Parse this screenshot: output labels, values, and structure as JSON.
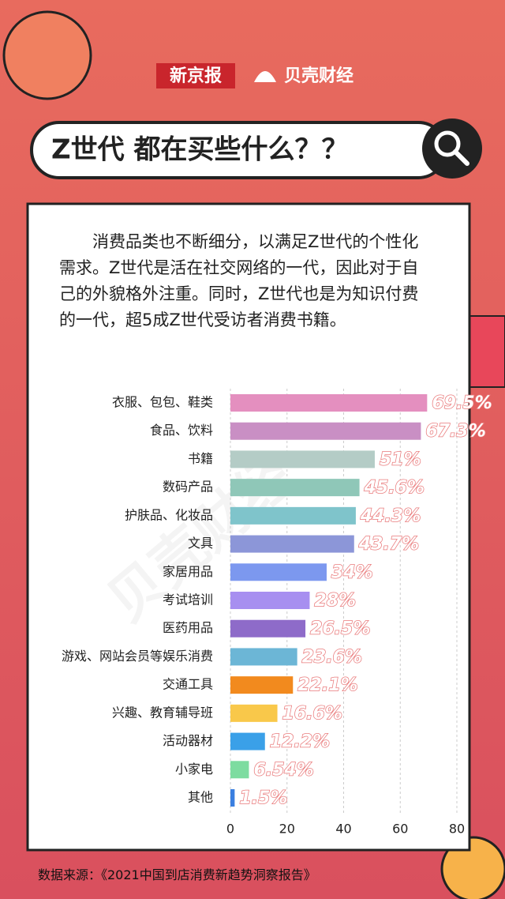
{
  "header": {
    "brands": [
      "新京报",
      "贝壳财经"
    ]
  },
  "chart_data": {
    "type": "bar",
    "orientation": "horizontal",
    "title": "Z世代 都在买些什么？？",
    "subtitle": "消费品类也不断细分，以满足Z世代的个性化需求。Z世代是活在社交网络的一代，因此对于自己的外貌格外注重。同时，Z世代也是为知识付费的一代，超5成Z世代受访者消费书籍。",
    "source": "数据来源：《2021中国到店消费新趋势洞察报告》",
    "categories": [
      "衣服、包包、鞋类",
      "食品、饮料",
      "书籍",
      "数码产品",
      "护肤品、化妆品",
      "文具",
      "家居用品",
      "考试培训",
      "医药用品",
      "游戏、网站会员等娱乐消费",
      "交通工具",
      "兴趣、教育辅导班",
      "活动器材",
      "小家电",
      "其他"
    ],
    "values": [
      69.5,
      67.3,
      51,
      45.6,
      44.3,
      43.7,
      34,
      28,
      26.5,
      23.6,
      22.1,
      16.6,
      12.2,
      6.54,
      1.5
    ],
    "value_labels": [
      "69.5%",
      "67.3%",
      "51%",
      "45.6%",
      "44.3%",
      "43.7%",
      "34%",
      "28%",
      "26.5%",
      "23.6%",
      "22.1%",
      "16.6%",
      "12.2%",
      "6.54%",
      "1.5%"
    ],
    "colors": [
      "#e48fbf",
      "#c98fc4",
      "#b4ccc6",
      "#8fc7b8",
      "#7fc4cb",
      "#8c96d8",
      "#7c98ef",
      "#a78ff0",
      "#8e6bc9",
      "#6cb6d6",
      "#f28a1e",
      "#f9c84a",
      "#3aa0e8",
      "#7ddca0",
      "#3a7fe0"
    ],
    "xlim": [
      0,
      80
    ],
    "xticks": [
      0,
      20,
      40,
      60,
      80
    ],
    "grid": true
  }
}
